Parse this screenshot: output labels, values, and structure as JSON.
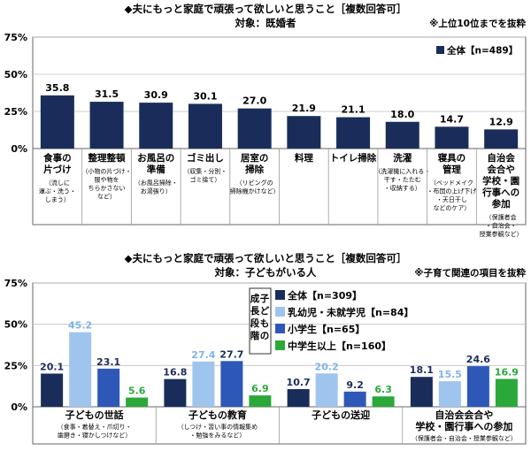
{
  "chart_data": [
    {
      "type": "bar",
      "title": "◆夫にもっと家庭で頑張って欲しいと思うこと［複数回答可］",
      "subtitle": "対象：既婚者",
      "note": "※上位10位までを抜粋",
      "y_ticks": [
        "0%",
        "25%",
        "50%",
        "75%"
      ],
      "ylim": [
        0,
        75
      ],
      "legend": [
        "全体【n=489】"
      ],
      "categories": [
        {
          "label": "食事の\n片づけ",
          "sub": "（流しに\n運ぶ・洗う・\nしまう）"
        },
        {
          "label": "整理整頓",
          "sub": "（小物の片づけ・\n服や物を\nちらかさない\nなど）"
        },
        {
          "label": "お風呂の\n準備",
          "sub": "（お風呂掃除・\nお湯張り）"
        },
        {
          "label": "ゴミ出し",
          "sub": "（収集・分別・\nゴミ捨て）"
        },
        {
          "label": "居室の\n掃除",
          "sub": "（リビングの\n掃除機かけなど）"
        },
        {
          "label": "料理",
          "sub": ""
        },
        {
          "label": "トイレ掃除",
          "sub": ""
        },
        {
          "label": "洗濯",
          "sub": "（洗濯機に入れる・\n干す・たたむ\n・収納する）"
        },
        {
          "label": "寝具の\n管理",
          "sub": "（ベッドメイク\n・布団の上げ下げ\n・天日干し\nなどのケア）"
        },
        {
          "label": "自治会\n会合や\n学校・園\n行事への\n参加",
          "sub": "（保護者会\n・自治会・\n授業参観など）"
        }
      ],
      "series": [
        {
          "name": "全体【n=489】",
          "color": "#1a2d5a",
          "values": [
            35.8,
            31.5,
            30.9,
            30.1,
            27.0,
            21.9,
            21.1,
            18.0,
            14.7,
            12.9
          ]
        }
      ]
    },
    {
      "type": "bar",
      "title": "◆夫にもっと家庭で頑張って欲しいと思うこと［複数回答可］",
      "subtitle": "対象：子どもがいる人",
      "note": "※子育て関連の項目を抜粋",
      "y_ticks": [
        "0%",
        "25%",
        "50%",
        "75%"
      ],
      "ylim": [
        0,
        75
      ],
      "legend_title": "子どもの成長段階",
      "categories": [
        {
          "label": "子どもの世話",
          "sub": "（食事・着替え・爪切り・\n歯磨き・寝かしつけなど）"
        },
        {
          "label": "子どもの教育",
          "sub": "（しつけ・習い事の情報集め\n・勉強をみるなど）"
        },
        {
          "label": "子どもの送迎",
          "sub": ""
        },
        {
          "label": "自治会会合や\n学校・園行事への参加",
          "sub": "（保護者会・自治会・授業参観など）"
        }
      ],
      "series": [
        {
          "name": "全体【n=309】",
          "color": "#1a2d5a",
          "values": [
            20.1,
            16.8,
            10.7,
            18.1
          ]
        },
        {
          "name": "乳幼児・未就学児【n=84】",
          "color": "#9fc5ee",
          "values": [
            45.2,
            27.4,
            20.2,
            15.5
          ]
        },
        {
          "name": "小学生【n=65】",
          "color": "#2e58b8",
          "values": [
            23.1,
            27.7,
            9.2,
            24.6
          ]
        },
        {
          "name": "中学生以上【n=160】",
          "color": "#2aa83a",
          "values": [
            5.6,
            6.9,
            6.3,
            16.9
          ]
        }
      ]
    }
  ]
}
